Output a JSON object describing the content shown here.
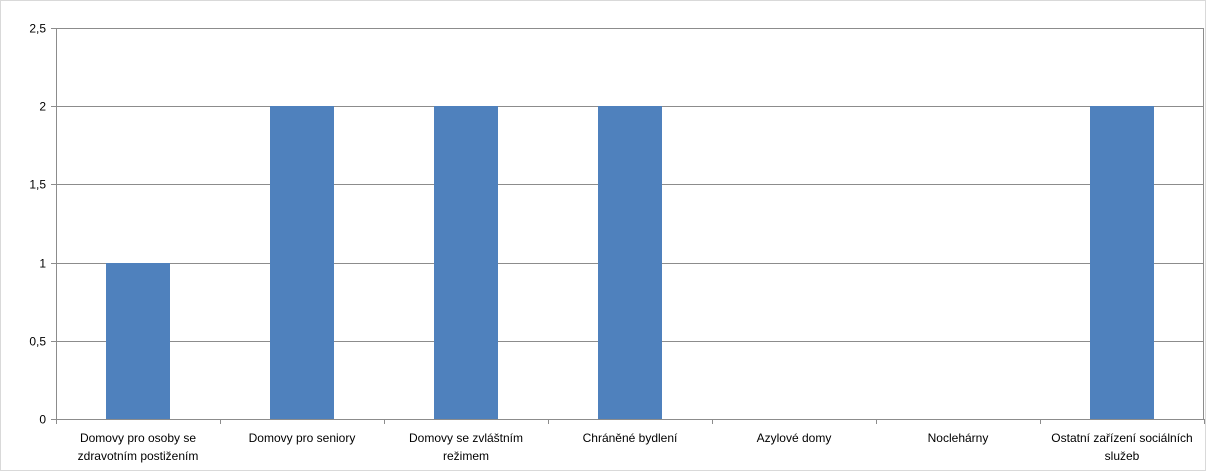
{
  "chart_data": {
    "type": "bar",
    "categories": [
      [
        "Domovy pro osoby se",
        "zdravotním postižením"
      ],
      [
        "Domovy pro seniory"
      ],
      [
        "Domovy se zvláštním",
        "režimem"
      ],
      [
        "Chráněné bydlení"
      ],
      [
        "Azylové domy"
      ],
      [
        "Noclehárny"
      ],
      [
        "Ostatní zařízení sociálních",
        "služeb"
      ]
    ],
    "values": [
      1,
      2,
      2,
      2,
      0,
      0,
      2
    ],
    "y_ticks": [
      "0",
      "0,5",
      "1",
      "1,5",
      "2",
      "2,5"
    ],
    "ylim": [
      0,
      2.5
    ],
    "grid": true,
    "bar_color": "#4f81bd",
    "title": "",
    "xlabel": "",
    "ylabel": ""
  }
}
